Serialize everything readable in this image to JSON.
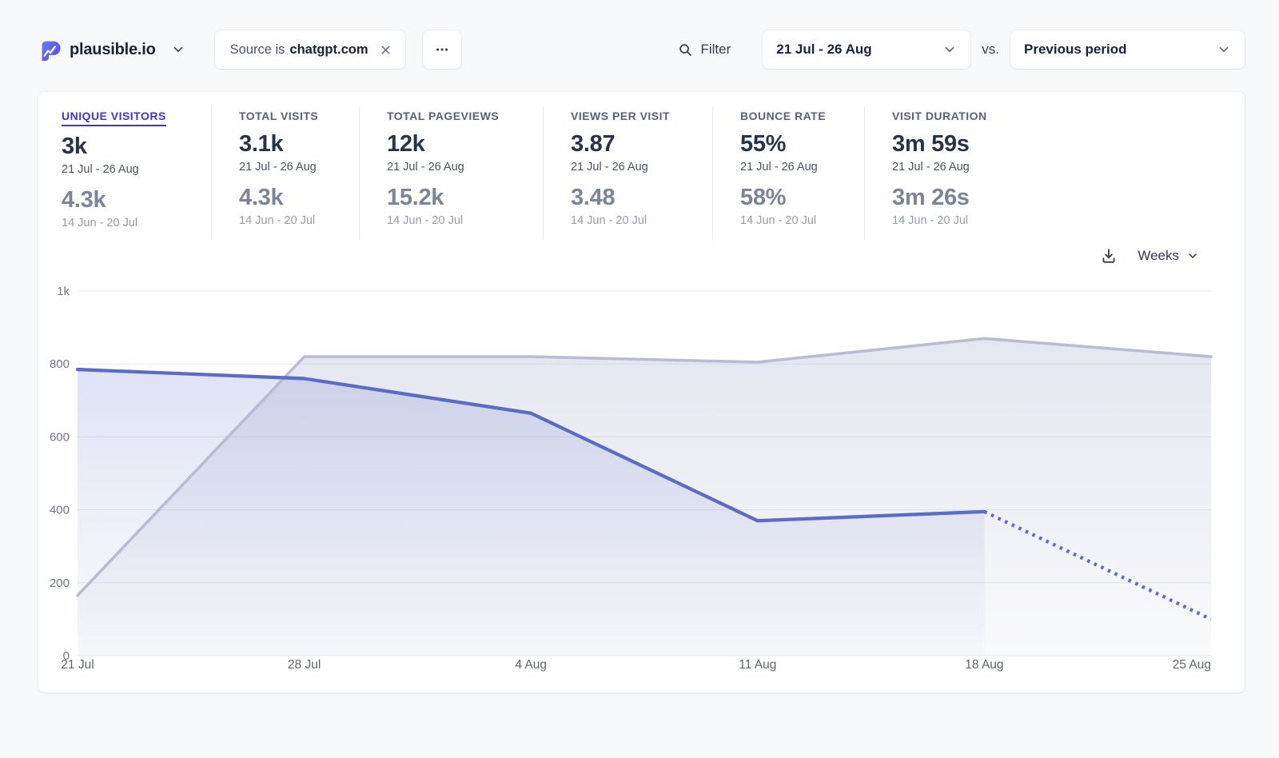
{
  "header": {
    "site_name": "plausible.io",
    "filter_chip": {
      "prefix": "Source is",
      "value": "chatgpt.com"
    },
    "filter_label": "Filter",
    "date_range": "21 Jul - 26 Aug",
    "vs_label": "vs.",
    "comparison": "Previous period"
  },
  "metrics": [
    {
      "label": "UNIQUE VISITORS",
      "value": "3k",
      "period": "21 Jul - 26 Aug",
      "prev_value": "4.3k",
      "prev_period": "14 Jun - 20 Jul",
      "active": true
    },
    {
      "label": "TOTAL VISITS",
      "value": "3.1k",
      "period": "21 Jul - 26 Aug",
      "prev_value": "4.3k",
      "prev_period": "14 Jun - 20 Jul",
      "active": false
    },
    {
      "label": "TOTAL PAGEVIEWS",
      "value": "12k",
      "period": "21 Jul - 26 Aug",
      "prev_value": "15.2k",
      "prev_period": "14 Jun - 20 Jul",
      "active": false
    },
    {
      "label": "VIEWS PER VISIT",
      "value": "3.87",
      "period": "21 Jul - 26 Aug",
      "prev_value": "3.48",
      "prev_period": "14 Jun - 20 Jul",
      "active": false
    },
    {
      "label": "BOUNCE RATE",
      "value": "55%",
      "period": "21 Jul - 26 Aug",
      "prev_value": "58%",
      "prev_period": "14 Jun - 20 Jul",
      "active": false
    },
    {
      "label": "VISIT DURATION",
      "value": "3m 59s",
      "period": "21 Jul - 26 Aug",
      "prev_value": "3m 26s",
      "prev_period": "14 Jun - 20 Jul",
      "active": false
    }
  ],
  "chart_controls": {
    "interval_label": "Weeks"
  },
  "chart_data": {
    "type": "area",
    "title": "",
    "x": [
      "21 Jul",
      "28 Jul",
      "4 Aug",
      "11 Aug",
      "18 Aug",
      "25 Aug"
    ],
    "series": [
      {
        "name": "Unique visitors 21 Jul - 26 Aug",
        "values": [
          785,
          760,
          665,
          370,
          395,
          100
        ],
        "color": "#5b6cc5",
        "dashed_from_index": 4
      },
      {
        "name": "Previous period 14 Jun - 20 Jul",
        "values": [
          165,
          820,
          820,
          805,
          870,
          820
        ],
        "color": "#b9bdd3"
      }
    ],
    "ylim": [
      0,
      1000
    ],
    "yticks": [
      0,
      200,
      400,
      600,
      800,
      1000
    ],
    "ytick_labels": [
      "0",
      "200",
      "400",
      "600",
      "800",
      "1k"
    ],
    "grid": true,
    "legend_position": "none"
  },
  "colors": {
    "accent": "#4233c9",
    "current_line": "#5b6cc5",
    "previous_line": "#b9bdd3",
    "grid_line": "#e9ebee",
    "page_bg": "#f8f9fb"
  }
}
